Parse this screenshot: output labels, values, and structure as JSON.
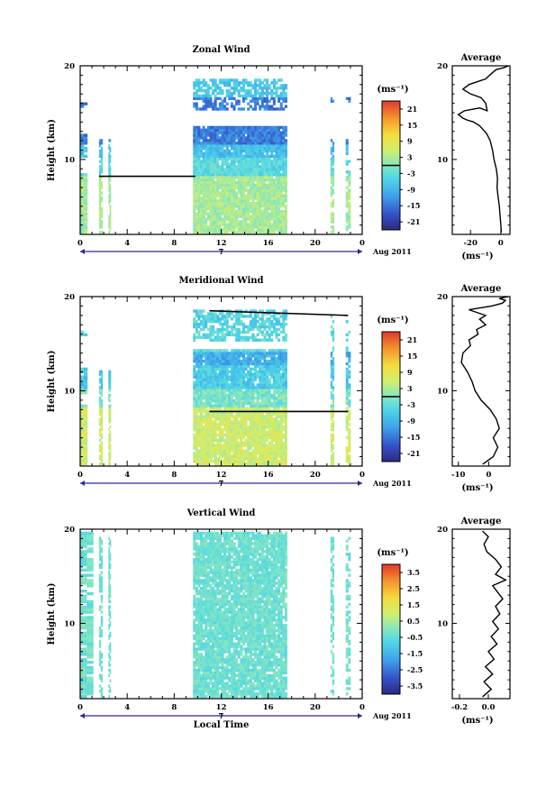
{
  "chart_data": [
    {
      "type": "heatmap",
      "title": "Zonal Wind",
      "ylabel": "Height (km)",
      "xlabel": "",
      "x_ticks": [
        "0",
        "4",
        "8",
        "12",
        "16",
        "20",
        "0"
      ],
      "y_ticks": [
        "10",
        "20"
      ],
      "ylim": [
        2,
        20
      ],
      "xlim": [
        0,
        24
      ],
      "date_label": "7",
      "month_label": "Aug 2011",
      "colorbar": {
        "unit": "(ms⁻¹)",
        "ticks": [
          "21",
          "15",
          "9",
          "3",
          "-3",
          "-9",
          "-15",
          "-21"
        ],
        "range": [
          -24,
          24
        ],
        "zero_line": true
      },
      "data_time_blocks": [
        [
          0,
          0.6
        ],
        [
          1.6,
          1.9
        ],
        [
          2.4,
          2.6
        ],
        [
          9.6,
          17.5
        ],
        [
          21.3,
          21.6
        ],
        [
          22.6,
          23.0
        ]
      ],
      "profile": {
        "title": "Average",
        "xlabel": "(ms⁻¹)",
        "x_ticks": [
          "-20",
          "0"
        ],
        "xlim": [
          -32,
          6
        ],
        "y_ticks": [
          "10",
          "20"
        ],
        "ylim": [
          2,
          20
        ],
        "points": [
          [
            0.3,
            2.2
          ],
          [
            0.0,
            3.0
          ],
          [
            -0.5,
            4.0
          ],
          [
            -1.0,
            5.0
          ],
          [
            -1.8,
            6.0
          ],
          [
            -2.5,
            7.0
          ],
          [
            -2.2,
            8.0
          ],
          [
            -3.0,
            9.0
          ],
          [
            -4.5,
            10.0
          ],
          [
            -5.5,
            11.0
          ],
          [
            -7.0,
            12.0
          ],
          [
            -9.5,
            12.8
          ],
          [
            -14.0,
            13.6
          ],
          [
            -18.0,
            14.0
          ],
          [
            -22.0,
            14.2
          ],
          [
            -25.0,
            14.4
          ],
          [
            -28.0,
            14.8
          ],
          [
            -24.0,
            15.2
          ],
          [
            -14.0,
            15.5
          ],
          [
            -9.0,
            15.2
          ],
          [
            -10.0,
            16.0
          ],
          [
            -13.0,
            16.6
          ],
          [
            -20.0,
            17.0
          ],
          [
            -25.0,
            17.5
          ],
          [
            -21.0,
            18.0
          ],
          [
            -10.0,
            18.6
          ],
          [
            -6.0,
            19.2
          ],
          [
            -3.0,
            19.6
          ],
          [
            2.0,
            19.8
          ],
          [
            5.0,
            20.0
          ]
        ]
      }
    },
    {
      "type": "heatmap",
      "title": "Meridional Wind",
      "ylabel": "Height (km)",
      "xlabel": "",
      "x_ticks": [
        "0",
        "4",
        "8",
        "12",
        "16",
        "20",
        "0"
      ],
      "y_ticks": [
        "10",
        "20"
      ],
      "ylim": [
        2,
        20
      ],
      "xlim": [
        0,
        24
      ],
      "date_label": "7",
      "month_label": "Aug 2011",
      "colorbar": {
        "unit": "(ms⁻¹)",
        "ticks": [
          "21",
          "15",
          "9",
          "3",
          "-3",
          "-9",
          "-15",
          "-21"
        ],
        "range": [
          -24,
          24
        ],
        "zero_line": true
      },
      "data_time_blocks": [
        [
          0,
          0.6
        ],
        [
          1.6,
          1.9
        ],
        [
          2.4,
          2.6
        ],
        [
          9.6,
          17.5
        ],
        [
          21.3,
          21.6
        ],
        [
          22.6,
          23.0
        ]
      ],
      "profile": {
        "title": "Average",
        "xlabel": "(ms⁻¹)",
        "x_ticks": [
          "-10",
          "0"
        ],
        "xlim": [
          -12,
          7
        ],
        "y_ticks": [
          "10",
          "20"
        ],
        "ylim": [
          2,
          20
        ],
        "points": [
          [
            -2.0,
            2.2
          ],
          [
            1.5,
            3.0
          ],
          [
            3.0,
            4.0
          ],
          [
            1.5,
            5.0
          ],
          [
            3.5,
            6.0
          ],
          [
            2.5,
            7.0
          ],
          [
            0.5,
            8.0
          ],
          [
            -2.5,
            9.0
          ],
          [
            -4.5,
            10.0
          ],
          [
            -5.5,
            11.0
          ],
          [
            -7.0,
            12.0
          ],
          [
            -9.0,
            13.0
          ],
          [
            -8.5,
            14.0
          ],
          [
            -6.0,
            14.8
          ],
          [
            -6.5,
            15.4
          ],
          [
            -3.5,
            16.0
          ],
          [
            -4.0,
            16.5
          ],
          [
            -1.0,
            17.0
          ],
          [
            -3.0,
            17.6
          ],
          [
            -1.0,
            18.0
          ],
          [
            -6.5,
            18.6
          ],
          [
            1.0,
            19.0
          ],
          [
            4.5,
            19.3
          ],
          [
            5.5,
            19.6
          ],
          [
            3.5,
            19.8
          ],
          [
            6.5,
            20.0
          ]
        ]
      }
    },
    {
      "type": "heatmap",
      "title": "Vertical Wind",
      "ylabel": "Height (km)",
      "xlabel": "Local Time",
      "x_ticks": [
        "0",
        "4",
        "8",
        "12",
        "16",
        "20",
        "0"
      ],
      "y_ticks": [
        "10",
        "20"
      ],
      "ylim": [
        2,
        20
      ],
      "xlim": [
        0,
        24
      ],
      "date_label": "7",
      "month_label": "Aug 2011",
      "colorbar": {
        "unit": "(ms⁻¹)",
        "ticks": [
          "3.5",
          "2.5",
          "1.5",
          "0.5",
          "-0.5",
          "-1.5",
          "-2.5",
          "-3.5"
        ],
        "range": [
          -4,
          4
        ],
        "zero_line": false
      },
      "data_time_blocks": [
        [
          0,
          1.1
        ],
        [
          1.6,
          1.9
        ],
        [
          2.4,
          2.6
        ],
        [
          9.6,
          17.5
        ],
        [
          21.3,
          21.6
        ],
        [
          22.6,
          23.0
        ]
      ],
      "profile": {
        "title": "Average",
        "xlabel": "(ms⁻¹)",
        "x_ticks": [
          "-0.2",
          "0.0"
        ],
        "xlim": [
          -0.25,
          0.15
        ],
        "y_ticks": [
          "10",
          "20"
        ],
        "ylim": [
          2,
          20
        ],
        "points": [
          [
            -0.04,
            2.2
          ],
          [
            0.02,
            3.0
          ],
          [
            -0.03,
            3.8
          ],
          [
            0.03,
            4.6
          ],
          [
            -0.02,
            5.4
          ],
          [
            0.04,
            6.2
          ],
          [
            0.0,
            7.0
          ],
          [
            0.06,
            7.8
          ],
          [
            0.02,
            8.6
          ],
          [
            0.07,
            9.4
          ],
          [
            0.03,
            10.2
          ],
          [
            0.08,
            11.0
          ],
          [
            0.05,
            11.8
          ],
          [
            0.1,
            12.6
          ],
          [
            0.06,
            13.4
          ],
          [
            0.03,
            14.0
          ],
          [
            0.12,
            14.6
          ],
          [
            0.05,
            15.2
          ],
          [
            0.09,
            16.0
          ],
          [
            0.05,
            16.8
          ],
          [
            -0.01,
            17.6
          ],
          [
            -0.03,
            18.4
          ],
          [
            0.0,
            19.2
          ],
          [
            -0.04,
            19.8
          ]
        ]
      }
    }
  ]
}
